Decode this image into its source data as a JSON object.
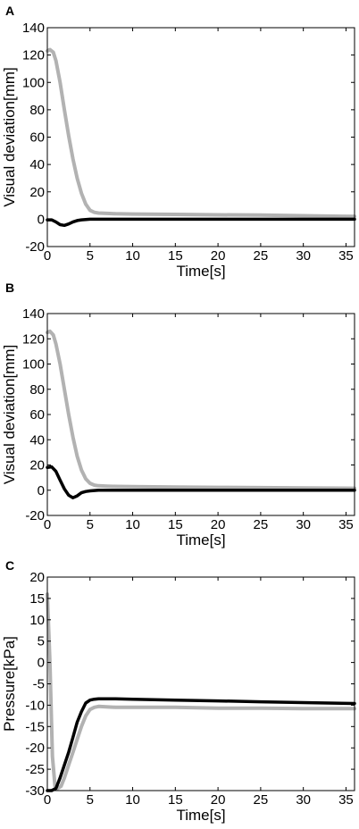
{
  "colors": {
    "black_series": "#000000",
    "gray_series": "#b2b2b2",
    "axes": "#000000"
  },
  "chart_data": [
    {
      "panel": "A",
      "type": "line",
      "xlabel": "Time[s]",
      "ylabel": "Visual deviation[mm]",
      "xlim": [
        0,
        36
      ],
      "ylim": [
        -20,
        140
      ],
      "xticks": [
        0,
        5,
        10,
        15,
        20,
        25,
        30,
        35
      ],
      "yticks": [
        -20,
        0,
        20,
        40,
        60,
        80,
        100,
        120,
        140
      ],
      "grid": false,
      "series": [
        {
          "color": "#b2b2b2",
          "x": [
            0,
            0.3,
            0.7,
            1,
            1.5,
            2,
            2.5,
            3,
            3.5,
            4,
            4.5,
            5,
            5.5,
            6,
            7,
            8,
            10,
            15,
            20,
            25,
            30,
            36
          ],
          "y": [
            123,
            124,
            122,
            116,
            100,
            80,
            61,
            44,
            30,
            19,
            11,
            6.5,
            5,
            4.5,
            4.2,
            4,
            3.8,
            3.5,
            3.2,
            3,
            2.5,
            2
          ]
        },
        {
          "color": "#000000",
          "x": [
            0,
            0.5,
            1,
            1.5,
            2,
            2.5,
            3,
            3.5,
            4,
            5,
            6,
            8,
            10,
            15,
            20,
            25,
            30,
            36
          ],
          "y": [
            -0.5,
            -0.5,
            -2,
            -4,
            -4.5,
            -3.5,
            -2,
            -1,
            -0.5,
            0,
            0,
            0,
            0,
            0,
            0,
            0,
            0,
            0
          ]
        }
      ]
    },
    {
      "panel": "B",
      "type": "line",
      "xlabel": "Time[s]",
      "ylabel": "Visual deviation[mm]",
      "xlim": [
        0,
        36
      ],
      "ylim": [
        -20,
        140
      ],
      "xticks": [
        0,
        5,
        10,
        15,
        20,
        25,
        30,
        35
      ],
      "yticks": [
        -20,
        0,
        20,
        40,
        60,
        80,
        100,
        120,
        140
      ],
      "grid": false,
      "series": [
        {
          "color": "#b2b2b2",
          "x": [
            0,
            0.3,
            0.7,
            1,
            1.5,
            2,
            2.5,
            3,
            3.5,
            4,
            4.5,
            5,
            5.5,
            6,
            7,
            8,
            10,
            15,
            20,
            25,
            30,
            36
          ],
          "y": [
            125,
            126,
            123,
            116,
            100,
            80,
            60,
            42,
            27,
            16,
            9,
            5.5,
            4,
            3.5,
            3.2,
            3,
            2.8,
            2.5,
            2.2,
            2,
            1.8,
            1.5
          ]
        },
        {
          "color": "#000000",
          "x": [
            0,
            0.5,
            1,
            1.5,
            2,
            2.5,
            3,
            3.5,
            4,
            4.5,
            5,
            6,
            8,
            10,
            15,
            20,
            25,
            30,
            36
          ],
          "y": [
            18,
            18.5,
            15,
            8,
            1,
            -4,
            -6,
            -4.5,
            -2,
            -1,
            -0.5,
            0,
            0,
            0,
            0,
            0,
            0,
            0,
            0
          ]
        }
      ]
    },
    {
      "panel": "C",
      "type": "line",
      "xlabel": "Time[s]",
      "ylabel": "Pressure[kPa]",
      "xlim": [
        0,
        36
      ],
      "ylim": [
        -30,
        20
      ],
      "xticks": [
        0,
        5,
        10,
        15,
        20,
        25,
        30,
        35
      ],
      "yticks": [
        -30,
        -25,
        -20,
        -15,
        -10,
        -5,
        0,
        5,
        10,
        15,
        20
      ],
      "grid": false,
      "series": [
        {
          "color": "#b2b2b2",
          "x": [
            0,
            0.3,
            0.6,
            0.9,
            1.2,
            1.6,
            2,
            2.5,
            3,
            3.5,
            4,
            4.5,
            5,
            5.5,
            6,
            8,
            10,
            15,
            20,
            25,
            30,
            36
          ],
          "y": [
            16,
            0,
            -22,
            -29,
            -29.5,
            -29,
            -27,
            -24,
            -21,
            -18,
            -15,
            -12.5,
            -11,
            -10.5,
            -10.3,
            -10.5,
            -10.5,
            -10.5,
            -10.7,
            -10.7,
            -10.8,
            -10.8
          ]
        },
        {
          "color": "#000000",
          "x": [
            0,
            0.5,
            1,
            1.5,
            2,
            2.5,
            3,
            3.5,
            4,
            4.5,
            5,
            5.5,
            6,
            8,
            10,
            15,
            20,
            25,
            30,
            36
          ],
          "y": [
            -30,
            -30,
            -29.5,
            -27,
            -24,
            -21,
            -17.5,
            -14,
            -11.5,
            -9.5,
            -8.8,
            -8.6,
            -8.5,
            -8.5,
            -8.6,
            -8.8,
            -9,
            -9.2,
            -9.4,
            -9.6
          ]
        }
      ]
    }
  ]
}
